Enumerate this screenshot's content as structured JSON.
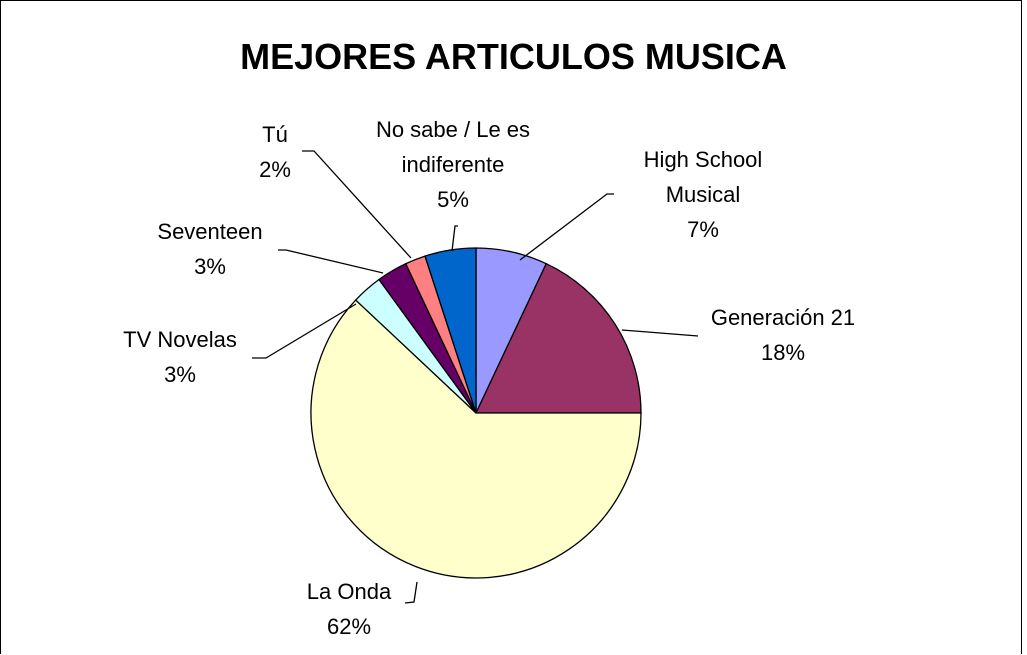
{
  "chart_data": {
    "type": "pie",
    "title": "MEJORES ARTICULOS MUSICA",
    "categories": [
      "High School Musical",
      "Generación 21",
      "La Onda",
      "TV Novelas",
      "Seventeen",
      "Tú",
      "No sabe / Le es indiferente"
    ],
    "values": [
      7,
      18,
      62,
      3,
      3,
      2,
      5
    ],
    "value_labels": [
      "7%",
      "18%",
      "62%",
      "3%",
      "3%",
      "2%",
      "5%"
    ],
    "colors": [
      "#9999FF",
      "#993366",
      "#FFFFCC",
      "#CCFFFF",
      "#660066",
      "#FF8080",
      "#0066CC"
    ]
  }
}
